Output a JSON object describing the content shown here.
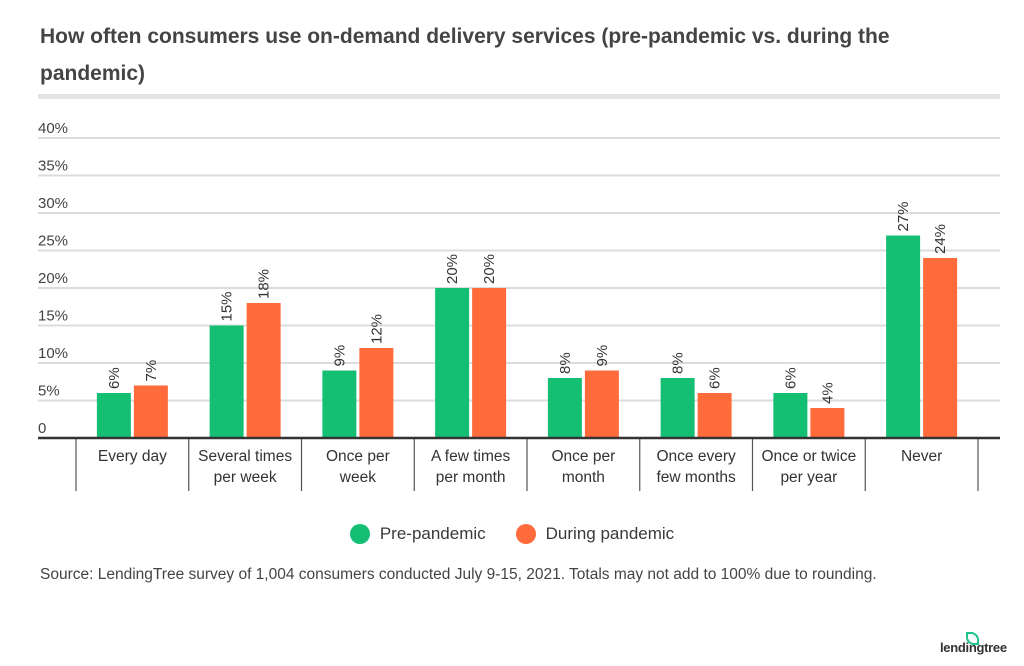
{
  "title": "How often consumers use on-demand delivery services (pre-pandemic vs. during the pandemic)",
  "source": "Source: LendingTree survey of 1,004 consumers conducted July 9-15, 2021. Totals may not add to 100% due to rounding.",
  "logo": "lendingtree",
  "chart_data": {
    "type": "bar",
    "title": "How often consumers use on-demand delivery services (pre-pandemic vs. during the pandemic)",
    "categories": [
      [
        "Every day"
      ],
      [
        "Several times",
        "per week"
      ],
      [
        "Once per",
        "week"
      ],
      [
        "A few times",
        "per month"
      ],
      [
        "Once per",
        "month"
      ],
      [
        "Once every",
        "few months"
      ],
      [
        "Once or twice",
        "per year"
      ],
      [
        "Never"
      ]
    ],
    "series": [
      {
        "name": "Pre-pandemic",
        "color": "#14bf73",
        "values": [
          6,
          15,
          9,
          20,
          8,
          8,
          6,
          27
        ]
      },
      {
        "name": "During pandemic",
        "color": "#ff6b3b",
        "values": [
          7,
          18,
          12,
          20,
          9,
          6,
          4,
          24
        ]
      }
    ],
    "ylim": [
      0,
      40
    ],
    "yticks": [
      "0",
      "5%",
      "10%",
      "15%",
      "20%",
      "25%",
      "30%",
      "35%",
      "40%"
    ],
    "grid": true,
    "legend": "bottom-center",
    "data_label_suffix": "%"
  }
}
